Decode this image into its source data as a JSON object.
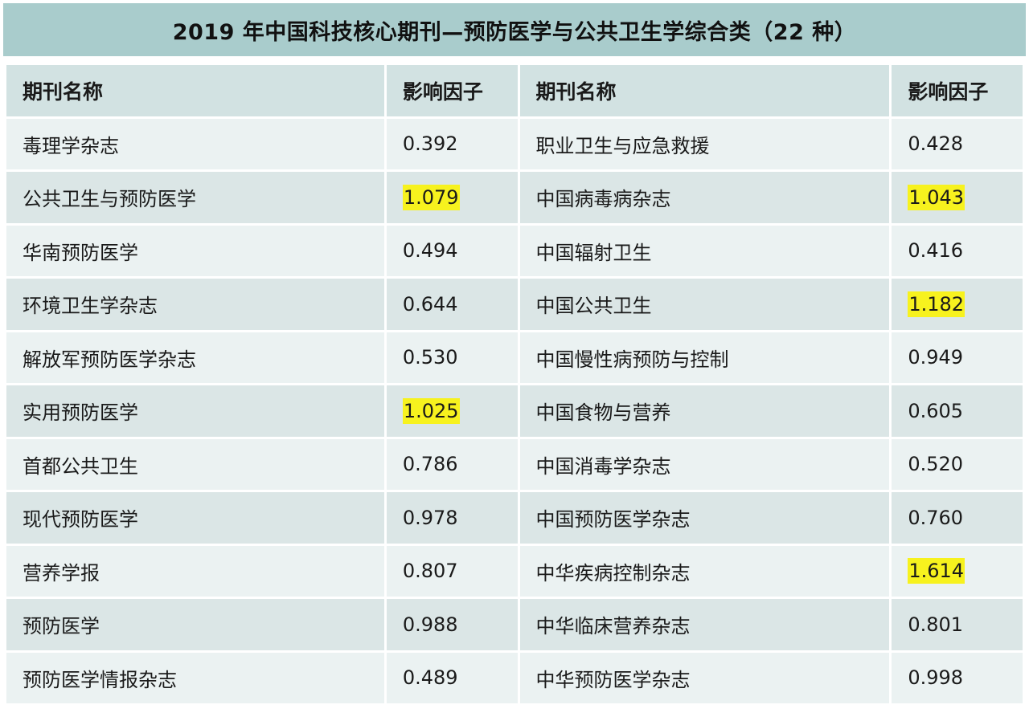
{
  "title": "2019 年中国科技核心期刊—预防医学与公共卫生学综合类（22 种）",
  "headers": {
    "name1": "期刊名称",
    "if1": "影响因子",
    "name2": "期刊名称",
    "if2": "影响因子"
  },
  "highlight_color": "#f7f21e",
  "rows": [
    {
      "left_name": "毒理学杂志",
      "left_if": "0.392",
      "left_highlight": false,
      "right_name": "职业卫生与应急救援",
      "right_if": "0.428",
      "right_highlight": false
    },
    {
      "left_name": "公共卫生与预防医学",
      "left_if": "1.079",
      "left_highlight": true,
      "right_name": "中国病毒病杂志",
      "right_if": "1.043",
      "right_highlight": true
    },
    {
      "left_name": "华南预防医学",
      "left_if": "0.494",
      "left_highlight": false,
      "right_name": "中国辐射卫生",
      "right_if": "0.416",
      "right_highlight": false
    },
    {
      "left_name": "环境卫生学杂志",
      "left_if": "0.644",
      "left_highlight": false,
      "right_name": "中国公共卫生",
      "right_if": "1.182",
      "right_highlight": true
    },
    {
      "left_name": "解放军预防医学杂志",
      "left_if": "0.530",
      "left_highlight": false,
      "right_name": "中国慢性病预防与控制",
      "right_if": "0.949",
      "right_highlight": false
    },
    {
      "left_name": "实用预防医学",
      "left_if": "1.025",
      "left_highlight": true,
      "right_name": "中国食物与营养",
      "right_if": "0.605",
      "right_highlight": false
    },
    {
      "left_name": "首都公共卫生",
      "left_if": "0.786",
      "left_highlight": false,
      "right_name": "中国消毒学杂志",
      "right_if": "0.520",
      "right_highlight": false
    },
    {
      "left_name": "现代预防医学",
      "left_if": "0.978",
      "left_highlight": false,
      "right_name": "中国预防医学杂志",
      "right_if": "0.760",
      "right_highlight": false
    },
    {
      "left_name": "营养学报",
      "left_if": "0.807",
      "left_highlight": false,
      "right_name": "中华疾病控制杂志",
      "right_if": "1.614",
      "right_highlight": true
    },
    {
      "left_name": "预防医学",
      "left_if": "0.988",
      "left_highlight": false,
      "right_name": "中华临床营养杂志",
      "right_if": "0.801",
      "right_highlight": false
    },
    {
      "left_name": "预防医学情报杂志",
      "left_if": "0.489",
      "left_highlight": false,
      "right_name": "中华预防医学杂志",
      "right_if": "0.998",
      "right_highlight": false
    }
  ]
}
